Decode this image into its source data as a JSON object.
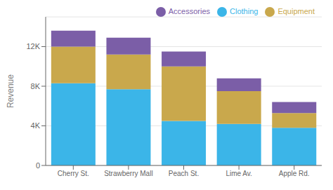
{
  "chart_data": {
    "type": "bar",
    "stacked": true,
    "categories": [
      "Cherry St.",
      "Strawberry Mall",
      "Peach St.",
      "Lime Av.",
      "Apple Rd."
    ],
    "series": [
      {
        "name": "Clothing",
        "color": "#3BB5E8",
        "values": [
          8300,
          7700,
          4500,
          4200,
          3800
        ]
      },
      {
        "name": "Equipment",
        "color": "#C9A84C",
        "values": [
          3700,
          3500,
          5500,
          3300,
          1500
        ]
      },
      {
        "name": "Accessories",
        "color": "#7B5EA7",
        "values": [
          1600,
          1700,
          1500,
          1300,
          1100
        ]
      }
    ],
    "ylabel": "Revenue",
    "ylim": [
      0,
      15000
    ],
    "yticks": [
      0,
      {
        "value": 4000,
        "label": "4K"
      },
      {
        "value": 8000,
        "label": "8K"
      },
      {
        "value": 12000,
        "label": "12K"
      }
    ],
    "grid": true,
    "legend": "upper right"
  }
}
